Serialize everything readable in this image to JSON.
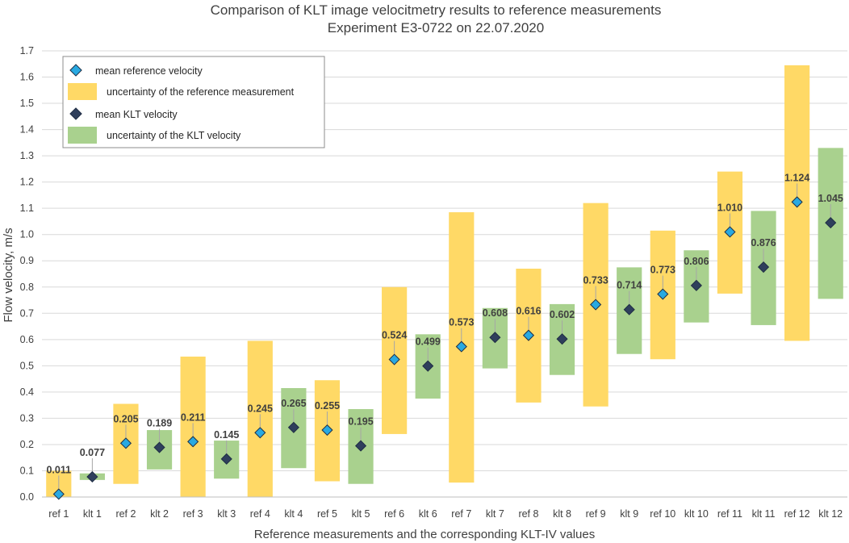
{
  "chart_data": {
    "type": "bar",
    "title": "Comparison of KLT image velocitmetry results to reference measurements",
    "subtitle": "Experiment  E3-0722 on 22.07.2020",
    "xlabel": "Reference measurements and the corresponding KLT-IV values",
    "ylabel": "Flow velocity, m/s",
    "ylim": [
      0,
      1.7
    ],
    "yticks": [
      "0.0",
      "0.1",
      "0.2",
      "0.3",
      "0.4",
      "0.5",
      "0.6",
      "0.7",
      "0.8",
      "0.9",
      "1.0",
      "1.1",
      "1.2",
      "1.3",
      "1.4",
      "1.5",
      "1.6",
      "1.7"
    ],
    "grid": true,
    "legend_position": "top-left",
    "legend": [
      {
        "label": "mean reference velocity",
        "kind": "ref-marker"
      },
      {
        "label": "uncertainty of the reference measurement",
        "kind": "ref-bar"
      },
      {
        "label": "mean KLT velocity",
        "kind": "klt-marker"
      },
      {
        "label": "uncertainty of the KLT velocity",
        "kind": "klt-bar"
      }
    ],
    "colors": {
      "ref_bar": "#ffd966",
      "klt_bar": "#a9d18e",
      "ref_marker": "#29a9e1",
      "klt_marker": "#2f3f5c",
      "marker_edge": "#1f2d44"
    },
    "categories": [
      "ref 1",
      "klt 1",
      "ref 2",
      "klt 2",
      "ref 3",
      "klt 3",
      "ref 4",
      "klt 4",
      "ref 5",
      "klt 5",
      "ref 6",
      "klt 6",
      "ref 7",
      "klt 7",
      "ref 8",
      "klt 8",
      "ref 9",
      "klt 9",
      "ref 10",
      "klt 10",
      "ref 11",
      "klt 11",
      "ref 12",
      "klt 12"
    ],
    "series_kind": [
      "ref",
      "klt",
      "ref",
      "klt",
      "ref",
      "klt",
      "ref",
      "klt",
      "ref",
      "klt",
      "ref",
      "klt",
      "ref",
      "klt",
      "ref",
      "klt",
      "ref",
      "klt",
      "ref",
      "klt",
      "ref",
      "klt",
      "ref",
      "klt"
    ],
    "mean": [
      0.011,
      0.077,
      0.205,
      0.189,
      0.211,
      0.145,
      0.245,
      0.265,
      0.255,
      0.195,
      0.524,
      0.499,
      0.573,
      0.608,
      0.616,
      0.602,
      0.733,
      0.714,
      0.773,
      0.806,
      1.01,
      0.876,
      1.124,
      1.045
    ],
    "mean_labels": [
      "0.011",
      "0.077",
      "0.205",
      "0.189",
      "0.211",
      "0.145",
      "0.245",
      "0.265",
      "0.255",
      "0.195",
      "0.524",
      "0.499",
      "0.573",
      "0.608",
      "0.616",
      "0.602",
      "0.733",
      "0.714",
      "0.773",
      "0.806",
      "1.010",
      "0.876",
      "1.124",
      "1.045"
    ],
    "uncertainty_low": [
      0.0,
      0.065,
      0.05,
      0.105,
      0.0,
      0.07,
      0.0,
      0.11,
      0.06,
      0.05,
      0.24,
      0.375,
      0.055,
      0.49,
      0.36,
      0.465,
      0.345,
      0.545,
      0.525,
      0.665,
      0.775,
      0.655,
      0.595,
      0.755
    ],
    "uncertainty_high": [
      0.1,
      0.09,
      0.355,
      0.255,
      0.535,
      0.215,
      0.595,
      0.415,
      0.445,
      0.335,
      0.8,
      0.62,
      1.085,
      0.72,
      0.87,
      0.735,
      1.12,
      0.875,
      1.015,
      0.94,
      1.24,
      1.09,
      1.645,
      1.33
    ]
  }
}
